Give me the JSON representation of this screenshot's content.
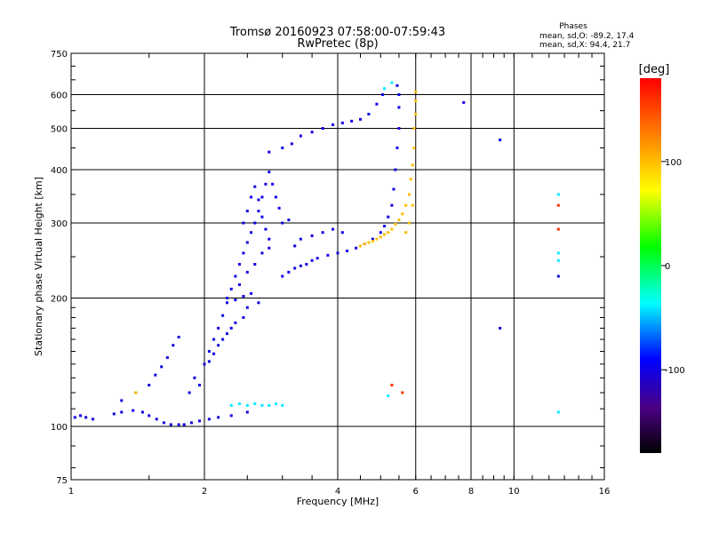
{
  "chart_data": {
    "type": "scatter",
    "title": "Tromsø 20160923 07:58:00-07:59:43",
    "subtitle": "RwPretec (8p)",
    "xlabel": "Frequency [MHz]",
    "ylabel": "Stationary phase Virtual Height [km]",
    "x_scale": "log",
    "y_scale": "log",
    "xlim": [
      1,
      16
    ],
    "ylim": [
      75,
      750
    ],
    "x_ticks": [
      1,
      2,
      4,
      6,
      8,
      10,
      16
    ],
    "x_tick_labels": [
      "1",
      "2",
      "4",
      "6",
      "8",
      "10",
      "16"
    ],
    "y_ticks": [
      75,
      100,
      200,
      300,
      400,
      500,
      600,
      750
    ],
    "y_tick_labels": [
      "75",
      "100",
      "200",
      "300",
      "400",
      "500",
      "600",
      "750"
    ],
    "grid": true,
    "phases_box": {
      "title": "Phases",
      "line_o": "mean, sd,O: -89.2, 17.4",
      "line_x": "mean, sd,X:  94.4, 21.7"
    },
    "colorbar": {
      "label": "[deg]",
      "range": [
        -180,
        180
      ],
      "ticks": [
        100,
        0,
        -100
      ],
      "tick_labels": [
        "100",
        "0",
        "-100"
      ],
      "colors": [
        "#000000",
        "#4b0082",
        "#0000ff",
        "#00ffff",
        "#00ff00",
        "#ffff00",
        "#ff8000",
        "#ff0000"
      ]
    },
    "series": [
      {
        "phase": -100,
        "points": [
          [
            1.02,
            105
          ],
          [
            1.05,
            106
          ],
          [
            1.08,
            105
          ],
          [
            1.12,
            104
          ],
          [
            1.25,
            107
          ],
          [
            1.3,
            108
          ],
          [
            1.38,
            109
          ],
          [
            1.45,
            108
          ],
          [
            1.5,
            106
          ],
          [
            1.56,
            104
          ],
          [
            1.62,
            102
          ],
          [
            1.68,
            101
          ],
          [
            1.75,
            101
          ],
          [
            1.8,
            101
          ],
          [
            1.87,
            102
          ],
          [
            1.95,
            103
          ],
          [
            2.05,
            104
          ],
          [
            2.15,
            105
          ],
          [
            2.3,
            106
          ],
          [
            2.5,
            108
          ],
          [
            1.3,
            115
          ],
          [
            1.4,
            120
          ],
          [
            1.5,
            125
          ],
          [
            1.55,
            132
          ],
          [
            1.6,
            138
          ],
          [
            1.65,
            145
          ],
          [
            1.7,
            155
          ],
          [
            1.75,
            162
          ],
          [
            2.0,
            140
          ],
          [
            2.05,
            150
          ],
          [
            2.1,
            160
          ],
          [
            2.15,
            170
          ],
          [
            2.2,
            182
          ],
          [
            2.25,
            195
          ],
          [
            2.3,
            210
          ],
          [
            2.35,
            225
          ],
          [
            2.4,
            240
          ],
          [
            2.45,
            255
          ],
          [
            2.5,
            270
          ],
          [
            2.55,
            285
          ],
          [
            2.6,
            300
          ],
          [
            2.65,
            320
          ],
          [
            2.7,
            345
          ],
          [
            2.75,
            370
          ],
          [
            2.8,
            395
          ],
          [
            2.85,
            370
          ],
          [
            2.9,
            345
          ],
          [
            2.95,
            325
          ],
          [
            2.45,
            300
          ],
          [
            2.5,
            320
          ],
          [
            2.55,
            345
          ],
          [
            2.6,
            365
          ],
          [
            2.65,
            340
          ],
          [
            2.7,
            310
          ],
          [
            2.75,
            290
          ],
          [
            2.8,
            275
          ],
          [
            2.5,
            230
          ],
          [
            2.6,
            240
          ],
          [
            2.7,
            255
          ],
          [
            2.8,
            262
          ],
          [
            2.4,
            215
          ],
          [
            2.55,
            205
          ],
          [
            2.65,
            195
          ],
          [
            2.5,
            190
          ],
          [
            2.45,
            180
          ],
          [
            2.35,
            175
          ],
          [
            2.3,
            170
          ],
          [
            2.25,
            165
          ],
          [
            2.2,
            160
          ],
          [
            2.15,
            155
          ],
          [
            2.1,
            148
          ],
          [
            2.05,
            142
          ],
          [
            3.0,
            225
          ],
          [
            3.1,
            230
          ],
          [
            3.2,
            235
          ],
          [
            3.3,
            238
          ],
          [
            3.4,
            240
          ],
          [
            3.5,
            245
          ],
          [
            3.6,
            248
          ],
          [
            3.8,
            252
          ],
          [
            4.0,
            255
          ],
          [
            4.2,
            258
          ],
          [
            4.4,
            262
          ],
          [
            4.6,
            268
          ],
          [
            4.8,
            275
          ],
          [
            5.0,
            285
          ],
          [
            5.1,
            295
          ],
          [
            5.2,
            310
          ],
          [
            5.3,
            330
          ],
          [
            5.35,
            360
          ],
          [
            5.4,
            400
          ],
          [
            5.45,
            450
          ],
          [
            5.5,
            500
          ],
          [
            5.5,
            560
          ],
          [
            5.5,
            600
          ],
          [
            5.45,
            630
          ],
          [
            3.2,
            265
          ],
          [
            3.3,
            275
          ],
          [
            3.5,
            280
          ],
          [
            3.7,
            285
          ],
          [
            3.9,
            290
          ],
          [
            4.1,
            285
          ],
          [
            3.0,
            300
          ],
          [
            3.1,
            305
          ],
          [
            3.3,
            480
          ],
          [
            3.5,
            490
          ],
          [
            3.7,
            500
          ],
          [
            3.9,
            510
          ],
          [
            4.1,
            515
          ],
          [
            4.3,
            520
          ],
          [
            4.5,
            525
          ],
          [
            4.7,
            540
          ],
          [
            4.9,
            570
          ],
          [
            5.05,
            600
          ],
          [
            3.0,
            450
          ],
          [
            3.15,
            460
          ],
          [
            2.8,
            440
          ],
          [
            7.7,
            575
          ],
          [
            9.3,
            470
          ],
          [
            12.6,
            225
          ],
          [
            9.3,
            170
          ],
          [
            2.25,
            200
          ],
          [
            2.35,
            198
          ],
          [
            2.45,
            202
          ],
          [
            1.9,
            130
          ],
          [
            1.95,
            125
          ],
          [
            1.85,
            120
          ]
        ]
      },
      {
        "phase": -40,
        "points": [
          [
            2.3,
            112
          ],
          [
            2.4,
            113
          ],
          [
            2.5,
            112
          ],
          [
            2.6,
            113
          ],
          [
            2.7,
            112
          ],
          [
            2.8,
            112
          ],
          [
            2.9,
            113
          ],
          [
            3.0,
            112
          ],
          [
            5.3,
            640
          ],
          [
            5.1,
            620
          ],
          [
            5.2,
            118
          ],
          [
            12.6,
            350
          ],
          [
            12.6,
            255
          ],
          [
            12.6,
            245
          ],
          [
            12.6,
            108
          ]
        ]
      },
      {
        "phase": 100,
        "points": [
          [
            4.5,
            265
          ],
          [
            4.6,
            268
          ],
          [
            4.7,
            270
          ],
          [
            4.8,
            272
          ],
          [
            4.9,
            275
          ],
          [
            5.0,
            278
          ],
          [
            5.1,
            282
          ],
          [
            5.2,
            285
          ],
          [
            5.3,
            290
          ],
          [
            5.4,
            298
          ],
          [
            5.5,
            305
          ],
          [
            5.6,
            315
          ],
          [
            5.7,
            330
          ],
          [
            5.8,
            350
          ],
          [
            5.85,
            380
          ],
          [
            5.9,
            410
          ],
          [
            5.95,
            450
          ],
          [
            5.95,
            500
          ],
          [
            6.0,
            540
          ],
          [
            6.0,
            580
          ],
          [
            6.0,
            610
          ],
          [
            5.9,
            330
          ],
          [
            5.8,
            300
          ],
          [
            5.7,
            285
          ],
          [
            1.4,
            120
          ]
        ]
      },
      {
        "phase": 160,
        "points": [
          [
            12.6,
            330
          ],
          [
            12.6,
            290
          ],
          [
            5.6,
            120
          ],
          [
            5.3,
            125
          ]
        ]
      }
    ]
  }
}
